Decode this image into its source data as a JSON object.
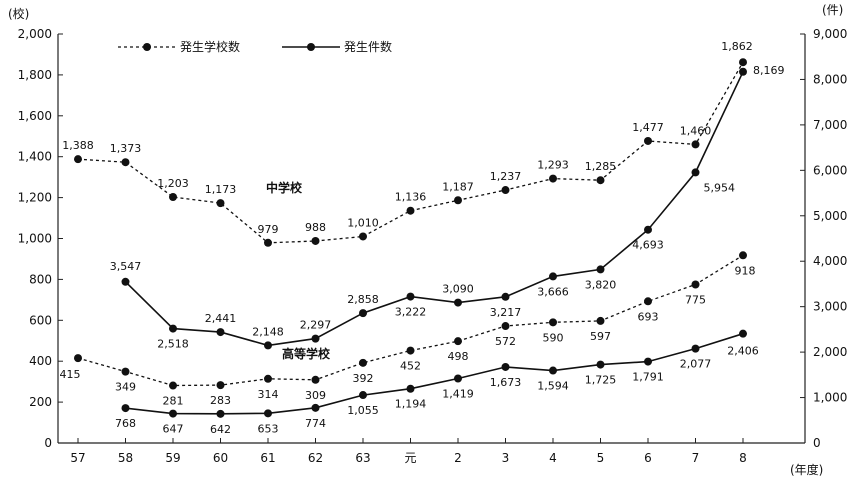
{
  "chart_data": {
    "type": "line",
    "left_axis_unit": "(校)",
    "right_axis_unit": "(件)",
    "x_axis_unit": "(年度)",
    "categories": [
      "57",
      "58",
      "59",
      "60",
      "61",
      "62",
      "63",
      "元",
      "2",
      "3",
      "4",
      "5",
      "6",
      "7",
      "8"
    ],
    "left_ticks": [
      "0",
      "200",
      "400",
      "600",
      "800",
      "1,000",
      "1,200",
      "1,400",
      "1,600",
      "1,800",
      "2,000"
    ],
    "right_ticks": [
      "0",
      "1,000",
      "2,000",
      "3,000",
      "4,000",
      "5,000",
      "6,000",
      "7,000",
      "8,000",
      "9,000"
    ],
    "ylim_left": [
      0,
      2000
    ],
    "ylim_right": [
      0,
      9000
    ],
    "legend": {
      "schools_label": "発生学校数",
      "incidents_label": "発生件数"
    },
    "groups": [
      {
        "name": "中学校",
        "series": [
          {
            "name": "発生学校数",
            "axis": "left",
            "style": "dashed",
            "start_index": 0,
            "values": [
              1388,
              1373,
              1203,
              1173,
              979,
              988,
              1010,
              1136,
              1187,
              1237,
              1293,
              1285,
              1477,
              1460,
              1862
            ],
            "labels": [
              "1,388",
              "1,373",
              "1,203",
              "1,173",
              "979",
              "988",
              "1,010",
              "1,136",
              "1,187",
              "1,237",
              "1,293",
              "1,285",
              "1,477",
              "1,460",
              "1,862"
            ]
          },
          {
            "name": "発生件数",
            "axis": "right",
            "style": "solid",
            "start_index": 1,
            "values": [
              3547,
              2518,
              2441,
              2148,
              2297,
              2858,
              3222,
              3090,
              3217,
              3666,
              3820,
              4693,
              5954,
              8169
            ],
            "labels": [
              "3,547",
              "2,518",
              "2,441",
              "2,148",
              "2,297",
              "2,858",
              "3,222",
              "3,090",
              "3,217",
              "3,666",
              "3,820",
              "4,693",
              "5,954",
              "8,169"
            ]
          }
        ]
      },
      {
        "name": "高等学校",
        "series": [
          {
            "name": "発生学校数",
            "axis": "left",
            "style": "dashed",
            "start_index": 0,
            "values": [
              415,
              349,
              281,
              283,
              314,
              309,
              392,
              452,
              498,
              572,
              590,
              597,
              693,
              775,
              918
            ],
            "labels": [
              "415",
              "349",
              "281",
              "283",
              "314",
              "309",
              "392",
              "452",
              "498",
              "572",
              "590",
              "597",
              "693",
              "775",
              "918"
            ]
          },
          {
            "name": "発生件数",
            "axis": "right",
            "style": "solid",
            "start_index": 1,
            "values": [
              768,
              647,
              642,
              653,
              774,
              1055,
              1194,
              1419,
              1673,
              1594,
              1725,
              1791,
              2077,
              2406
            ],
            "labels": [
              "768",
              "647",
              "642",
              "653",
              "774",
              "1,055",
              "1,194",
              "1,419",
              "1,673",
              "1,594",
              "1,725",
              "1,791",
              "2,077",
              "2,406"
            ]
          }
        ]
      }
    ]
  }
}
